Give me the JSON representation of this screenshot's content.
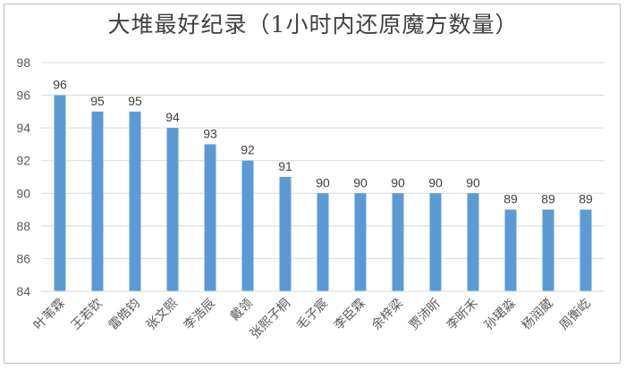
{
  "chart_data": {
    "type": "bar",
    "title": "大堆最好纪录（1小时内还原魔方数量）",
    "categories": [
      "叶苇霖",
      "王若钦",
      "雷皓钧",
      "张文熙",
      "李浩辰",
      "戴领",
      "张熙子桐",
      "毛子宸",
      "李臣霖",
      "余梓梁",
      "贾沛昕",
      "李昕禾",
      "孙珺淼",
      "杨润葳",
      "周衡屹"
    ],
    "values": [
      96,
      95,
      95,
      94,
      93,
      92,
      91,
      90,
      90,
      90,
      90,
      90,
      89,
      89,
      89
    ],
    "ylim": [
      84,
      98
    ],
    "yticks": [
      84,
      86,
      88,
      90,
      92,
      94,
      96,
      98
    ],
    "grid": true,
    "bar_color": "#5b9bd5"
  }
}
